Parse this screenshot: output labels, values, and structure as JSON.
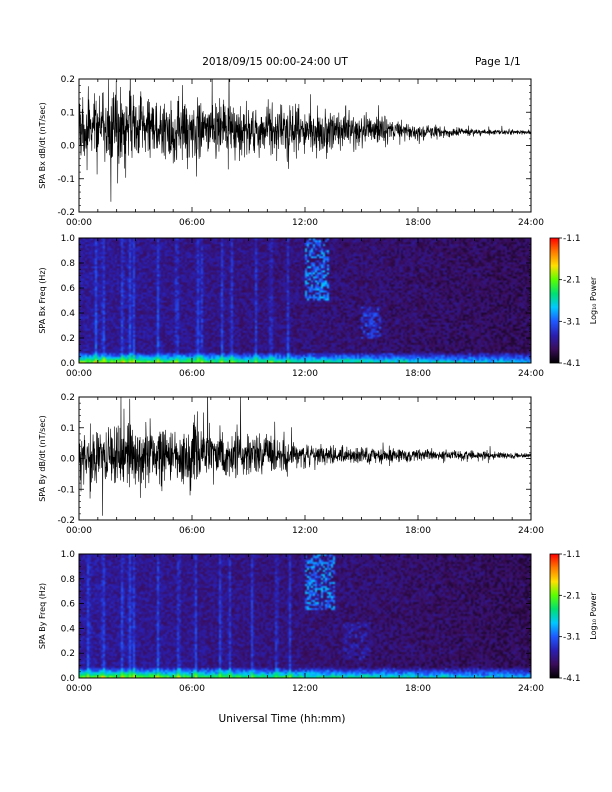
{
  "header": {
    "title": "2018/09/15  00:00-24:00 UT",
    "page": "Page 1/1"
  },
  "xaxis_title": "Universal Time (hh:mm)",
  "colorbar": {
    "label": "Log₁₀ Power",
    "ticks": [
      "-1.1",
      "-2.1",
      "-3.1",
      "-4.1"
    ],
    "range": [
      -4.1,
      -1.1
    ],
    "colormap": [
      "#000000",
      "#3a0d5a",
      "#2a1fb0",
      "#1f58ff",
      "#00c8ff",
      "#00e070",
      "#5aff00",
      "#ffe000",
      "#ff7a00",
      "#ff0000"
    ]
  },
  "chart_data": [
    {
      "type": "line",
      "ylabel": "SPA Bx dB/dt (nT/sec)",
      "x_range_hours": [
        0,
        24
      ],
      "xticks": [
        "00:00",
        "06:00",
        "12:00",
        "18:00",
        "24:00"
      ],
      "ylim": [
        -0.2,
        0.2
      ],
      "yticks": [
        "0.2",
        "0.1",
        "0.0",
        "-0.1",
        "-0.2"
      ],
      "series": [
        {
          "mean": [
            0.05,
            0.05,
            0.05,
            0.055,
            0.05,
            0.05,
            0.05,
            0.05,
            0.045,
            0.045,
            0.045,
            0.04,
            0.04,
            0.045,
            0.045,
            0.045,
            0.045,
            0.04,
            0.04,
            0.04,
            0.04,
            0.04,
            0.04,
            0.04,
            0.04
          ],
          "amplitude": [
            0.16,
            0.17,
            0.2,
            0.22,
            0.16,
            0.17,
            0.2,
            0.14,
            0.16,
            0.12,
            0.13,
            0.14,
            0.12,
            0.1,
            0.09,
            0.08,
            0.07,
            0.05,
            0.04,
            0.03,
            0.025,
            0.02,
            0.015,
            0.012,
            0.01
          ]
        }
      ]
    },
    {
      "type": "heatmap",
      "ylabel": "SPA Bx Freq (Hz)",
      "x_range_hours": [
        0,
        24
      ],
      "xticks": [
        "00:00",
        "06:00",
        "12:00",
        "18:00",
        "24:00"
      ],
      "ylim": [
        0.0,
        1.0
      ],
      "yticks": [
        "1.0",
        "0.8",
        "0.6",
        "0.4",
        "0.2",
        "0.0"
      ],
      "bright_columns_hours": [
        0.9,
        1.3,
        2.3,
        2.7,
        2.9,
        4.2,
        5.2,
        6.3,
        6.5,
        7.6,
        8.1,
        9.4,
        10.2,
        11.1
      ],
      "features": [
        {
          "hours": [
            12.0,
            13.3
          ],
          "freq": [
            0.5,
            1.0
          ],
          "level": -3.0
        },
        {
          "hours": [
            15.0,
            16.0
          ],
          "freq": [
            0.2,
            0.45
          ],
          "level": -3.3
        }
      ]
    },
    {
      "type": "line",
      "ylabel": "SPA By dB/dt (nT/sec)",
      "x_range_hours": [
        0,
        24
      ],
      "xticks": [
        "00:00",
        "06:00",
        "12:00",
        "18:00",
        "24:00"
      ],
      "ylim": [
        -0.2,
        0.2
      ],
      "yticks": [
        "0.2",
        "0.1",
        "0.0",
        "-0.1",
        "-0.2"
      ],
      "series": [
        {
          "mean": [
            0.01,
            0.01,
            0.01,
            0.01,
            0.01,
            0.01,
            0.01,
            0.01,
            0.01,
            0.01,
            0.01,
            0.01,
            0.01,
            0.01,
            0.01,
            0.01,
            0.01,
            0.01,
            0.01,
            0.01,
            0.01,
            0.01,
            0.01,
            0.01,
            0.01
          ],
          "amplitude": [
            0.12,
            0.15,
            0.18,
            0.2,
            0.14,
            0.16,
            0.2,
            0.14,
            0.13,
            0.12,
            0.11,
            0.1,
            0.06,
            0.05,
            0.05,
            0.06,
            0.05,
            0.04,
            0.035,
            0.03,
            0.03,
            0.025,
            0.02,
            0.015,
            0.012
          ]
        }
      ]
    },
    {
      "type": "heatmap",
      "ylabel": "SPA By Freq (Hz)",
      "x_range_hours": [
        0,
        24
      ],
      "xticks": [
        "00:00",
        "06:00",
        "12:00",
        "18:00",
        "24:00"
      ],
      "ylim": [
        0.0,
        1.0
      ],
      "yticks": [
        "1.0",
        "0.8",
        "0.6",
        "0.4",
        "0.2",
        "0.0"
      ],
      "bright_columns_hours": [
        0.5,
        1.3,
        2.3,
        2.7,
        2.9,
        4.2,
        5.3,
        6.2,
        7.5,
        8.0,
        9.2,
        10.5,
        11.2
      ],
      "features": [
        {
          "hours": [
            12.0,
            13.6
          ],
          "freq": [
            0.55,
            1.0
          ],
          "level": -3.0
        },
        {
          "hours": [
            14.0,
            15.5
          ],
          "freq": [
            0.15,
            0.45
          ],
          "level": -3.5
        }
      ]
    }
  ]
}
